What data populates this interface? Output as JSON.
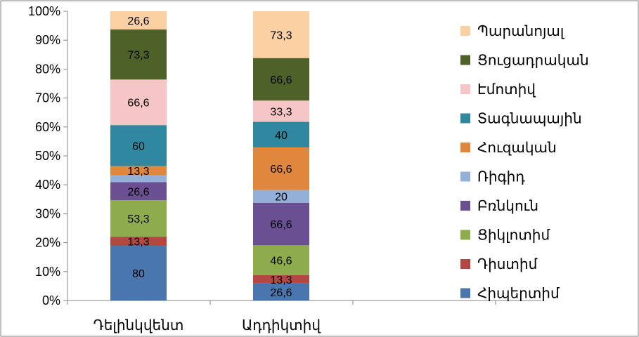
{
  "chart_data": {
    "type": "bar",
    "stacked": "percent",
    "categories": [
      "Դելինկվենտ",
      "Ադդիկտիվ"
    ],
    "series": [
      {
        "name": "Հիպերտիմ",
        "color": "#4a76b0",
        "values": [
          80,
          26.6
        ]
      },
      {
        "name": "Դիստիմ",
        "color": "#b44743",
        "values": [
          13.3,
          13.3
        ]
      },
      {
        "name": "Ցիկլոտիմ",
        "color": "#8dac4c",
        "values": [
          53.3,
          46.6
        ]
      },
      {
        "name": "Բռնկուն",
        "color": "#6a4f92",
        "values": [
          26.6,
          66.6
        ]
      },
      {
        "name": "Ռիգիդ",
        "color": "#93b1d8",
        "values": [
          10,
          20
        ]
      },
      {
        "name": "Հուզական",
        "color": "#e0863d",
        "values": [
          13.3,
          66.6
        ]
      },
      {
        "name": "Տագնապային",
        "color": "#2f88a0",
        "values": [
          60,
          40
        ]
      },
      {
        "name": "Էմոտիվ",
        "color": "#f6c5c6",
        "values": [
          66.6,
          33.3
        ]
      },
      {
        "name": "Ցուցադրական",
        "color": "#4e6129",
        "values": [
          73.3,
          66.6
        ]
      },
      {
        "name": "Պարանոյալ",
        "color": "#fbd0a3",
        "values": [
          26.6,
          73.3
        ]
      }
    ],
    "data_labels": [
      [
        "80",
        "26,6"
      ],
      [
        "13,3",
        "13,3"
      ],
      [
        "53,3",
        "46,6"
      ],
      [
        "26,6",
        "66,6"
      ],
      [
        "",
        "20"
      ],
      [
        "13,3",
        "66,6"
      ],
      [
        "60",
        "40"
      ],
      [
        "66,6",
        "33,3"
      ],
      [
        "73,3",
        "66,6"
      ],
      [
        "26,6",
        "73,3"
      ]
    ],
    "y_ticks": [
      "0%",
      "10%",
      "20%",
      "30%",
      "40%",
      "50%",
      "60%",
      "70%",
      "80%",
      "90%",
      "100%"
    ],
    "ylim": [
      0,
      100
    ],
    "legend": "right",
    "grid": false
  }
}
